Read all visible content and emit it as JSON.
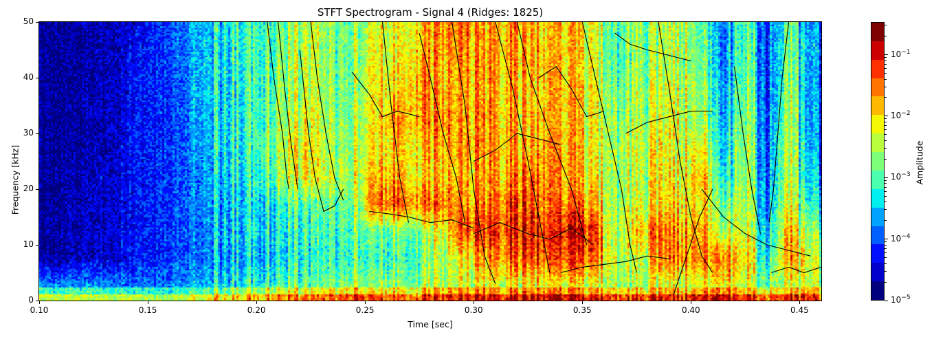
{
  "chart_data": {
    "type": "heatmap",
    "title": "STFT Spectrogram - Signal 4 (Ridges: 1825)",
    "xlabel": "Time [sec]",
    "ylabel": "Frequency [kHz]",
    "xlim": [
      0.1,
      0.46
    ],
    "ylim": [
      0,
      50
    ],
    "xticks": [
      "0.10",
      "0.15",
      "0.20",
      "0.25",
      "0.30",
      "0.35",
      "0.40",
      "0.45"
    ],
    "yticks": [
      "0",
      "10",
      "20",
      "30",
      "40",
      "50"
    ],
    "colorbar": {
      "label": "Amplitude",
      "scale": "log",
      "range": [
        1e-05,
        0.34
      ],
      "ticks": [
        {
          "base": "10",
          "exp": "−5"
        },
        {
          "base": "10",
          "exp": "−4"
        },
        {
          "base": "10",
          "exp": "−3"
        },
        {
          "base": "10",
          "exp": "−2"
        },
        {
          "base": "10",
          "exp": "−1"
        }
      ],
      "colormap": "jet",
      "levels": [
        "#00007f",
        "#0000cd",
        "#0010ff",
        "#0060ff",
        "#00a4ff",
        "#00f0f0",
        "#4affad",
        "#7dff7a",
        "#baff3d",
        "#f4f802",
        "#ffb900",
        "#ff7300",
        "#ff3000",
        "#cd0000",
        "#7f0000"
      ]
    },
    "ridge_color": "#000000",
    "grid_time_start": [
      0.1,
      0.11,
      0.12,
      0.13,
      0.14,
      0.15,
      0.16,
      0.17,
      0.18,
      0.19,
      0.2,
      0.21,
      0.22,
      0.23,
      0.24,
      0.25,
      0.26,
      0.27,
      0.28,
      0.29,
      0.3,
      0.31,
      0.32,
      0.33,
      0.34,
      0.35,
      0.36,
      0.37,
      0.38,
      0.39,
      0.4,
      0.41,
      0.42,
      0.43,
      0.44,
      0.45
    ],
    "grid_freq_bands_khz": [
      "0-5",
      "5-10",
      "10-15",
      "15-20",
      "20-25",
      "25-30",
      "30-35",
      "35-40",
      "40-45",
      "45-50"
    ],
    "log10_amplitude_grid": [
      [
        -3.7,
        -4.7,
        -4.8,
        -4.8,
        -4.8,
        -4.8,
        -4.8,
        -4.8,
        -4.8,
        -4.8
      ],
      [
        -3.7,
        -4.6,
        -4.7,
        -4.7,
        -4.7,
        -4.8,
        -4.8,
        -4.8,
        -4.8,
        -4.8
      ],
      [
        -3.7,
        -4.5,
        -4.6,
        -4.6,
        -4.6,
        -4.7,
        -4.7,
        -4.7,
        -4.7,
        -4.7
      ],
      [
        -3.7,
        -4.4,
        -4.4,
        -4.4,
        -4.4,
        -4.5,
        -4.5,
        -4.5,
        -4.5,
        -4.5
      ],
      [
        -3.8,
        -4.3,
        -4.3,
        -4.3,
        -4.3,
        -4.3,
        -4.3,
        -4.3,
        -4.3,
        -4.4
      ],
      [
        -3.8,
        -4.2,
        -4.2,
        -4.2,
        -4.2,
        -4.2,
        -4.2,
        -4.2,
        -4.2,
        -4.2
      ],
      [
        -3.7,
        -4.0,
        -4.0,
        -4.0,
        -4.0,
        -4.0,
        -4.0,
        -4.0,
        -3.9,
        -3.9
      ],
      [
        -3.5,
        -3.8,
        -3.8,
        -3.7,
        -3.7,
        -3.6,
        -3.6,
        -3.5,
        -3.5,
        -3.5
      ],
      [
        -3.3,
        -3.6,
        -3.5,
        -3.5,
        -3.4,
        -3.3,
        -3.3,
        -3.3,
        -3.3,
        -3.3
      ],
      [
        -3.2,
        -3.5,
        -3.4,
        -3.4,
        -3.3,
        -3.2,
        -3.2,
        -3.2,
        -3.1,
        -3.1
      ],
      [
        -3.0,
        -3.4,
        -3.3,
        -3.2,
        -2.9,
        -2.7,
        -2.8,
        -2.8,
        -2.9,
        -2.9
      ],
      [
        -2.9,
        -3.3,
        -3.2,
        -3.0,
        -2.3,
        -2.3,
        -2.5,
        -2.6,
        -2.6,
        -2.7
      ],
      [
        -2.9,
        -3.3,
        -3.2,
        -3.0,
        -2.2,
        -2.2,
        -2.3,
        -2.5,
        -2.5,
        -2.5
      ],
      [
        -2.8,
        -3.2,
        -3.1,
        -2.9,
        -2.5,
        -2.6,
        -2.7,
        -2.8,
        -2.8,
        -2.8
      ],
      [
        -2.4,
        -2.9,
        -2.8,
        -2.6,
        -2.3,
        -2.4,
        -2.5,
        -2.6,
        -2.6,
        -2.6
      ],
      [
        -2.6,
        -3.0,
        -2.8,
        -1.4,
        -1.8,
        -2.0,
        -2.0,
        -2.0,
        -2.1,
        -2.2
      ],
      [
        -2.6,
        -2.9,
        -2.7,
        -1.2,
        -1.7,
        -1.8,
        -1.5,
        -1.9,
        -2.0,
        -2.1
      ],
      [
        -2.5,
        -2.8,
        -2.6,
        -1.4,
        -1.9,
        -1.8,
        -1.6,
        -1.5,
        -1.6,
        -1.8
      ],
      [
        -2.5,
        -2.6,
        -2.3,
        -1.5,
        -2.0,
        -1.8,
        -1.6,
        -1.9,
        -1.8,
        -1.7
      ],
      [
        -2.4,
        -2.2,
        -1.4,
        -1.7,
        -1.9,
        -1.7,
        -1.8,
        -1.8,
        -1.7,
        -1.6
      ],
      [
        -2.3,
        -1.8,
        -1.3,
        -1.6,
        -1.8,
        -1.7,
        -1.7,
        -1.8,
        -1.8,
        -1.8
      ],
      [
        -2.3,
        -1.5,
        -1.2,
        -1.4,
        -1.7,
        -1.7,
        -1.8,
        -1.8,
        -1.7,
        -1.7
      ],
      [
        -2.2,
        -1.3,
        -1.1,
        -1.3,
        -1.5,
        -1.8,
        -1.9,
        -1.9,
        -1.8,
        -1.8
      ],
      [
        -2.2,
        -1.4,
        -1.2,
        -1.5,
        -1.6,
        -1.7,
        -1.8,
        -1.8,
        -1.8,
        -1.9
      ],
      [
        -2.3,
        -1.4,
        -1.1,
        -1.6,
        -1.9,
        -1.9,
        -2.0,
        -2.0,
        -2.1,
        -2.0
      ],
      [
        -2.4,
        -1.5,
        -1.2,
        -1.8,
        -2.1,
        -2.2,
        -2.2,
        -2.2,
        -2.3,
        -2.3
      ],
      [
        -2.6,
        -2.4,
        -2.5,
        -2.6,
        -2.6,
        -2.6,
        -2.7,
        -2.8,
        -3.0,
        -3.0
      ],
      [
        -2.6,
        -2.5,
        -2.0,
        -2.4,
        -2.5,
        -2.4,
        -2.6,
        -2.6,
        -2.7,
        -2.7
      ],
      [
        -2.5,
        -1.8,
        -1.5,
        -2.1,
        -2.2,
        -2.2,
        -2.4,
        -2.4,
        -2.6,
        -2.6
      ],
      [
        -2.4,
        -1.6,
        -1.8,
        -2.0,
        -2.2,
        -2.3,
        -2.3,
        -2.4,
        -2.5,
        -2.5
      ],
      [
        -2.3,
        -1.6,
        -1.7,
        -2.0,
        -1.8,
        -2.2,
        -2.6,
        -2.6,
        -2.8,
        -2.9
      ],
      [
        -2.2,
        -1.6,
        -2.6,
        -2.9,
        -3.3,
        -3.5,
        -3.6,
        -3.7,
        -3.8,
        -3.8
      ],
      [
        -2.3,
        -1.8,
        -2.1,
        -2.3,
        -2.4,
        -2.4,
        -2.5,
        -2.6,
        -2.7,
        -2.8
      ],
      [
        -2.8,
        -3.2,
        -3.5,
        -3.7,
        -3.8,
        -3.9,
        -3.9,
        -4.0,
        -4.0,
        -4.0
      ],
      [
        -2.4,
        -1.6,
        -1.8,
        -2.2,
        -2.4,
        -2.4,
        -2.5,
        -2.6,
        -2.7,
        -2.8
      ],
      [
        -2.6,
        -2.4,
        -2.8,
        -3.3,
        -3.6,
        -3.7,
        -3.8,
        -3.8,
        -3.8,
        -3.8
      ]
    ],
    "ridges": [
      [
        [
          0.205,
          50
        ],
        [
          0.208,
          40
        ],
        [
          0.212,
          30
        ],
        [
          0.214,
          22
        ],
        [
          0.215,
          20
        ]
      ],
      [
        [
          0.21,
          50
        ],
        [
          0.213,
          38
        ],
        [
          0.216,
          28
        ],
        [
          0.219,
          20
        ]
      ],
      [
        [
          0.225,
          50
        ],
        [
          0.228,
          40
        ],
        [
          0.232,
          30
        ],
        [
          0.236,
          22
        ],
        [
          0.24,
          18
        ]
      ],
      [
        [
          0.22,
          45
        ],
        [
          0.224,
          30
        ],
        [
          0.227,
          22
        ],
        [
          0.231,
          16
        ],
        [
          0.236,
          17
        ],
        [
          0.24,
          20
        ]
      ],
      [
        [
          0.252,
          16
        ],
        [
          0.262,
          15.5
        ],
        [
          0.27,
          15
        ],
        [
          0.28,
          14
        ],
        [
          0.29,
          14.5
        ],
        [
          0.3,
          13
        ]
      ],
      [
        [
          0.244,
          41
        ],
        [
          0.252,
          37
        ],
        [
          0.258,
          33
        ],
        [
          0.265,
          34
        ],
        [
          0.275,
          33
        ]
      ],
      [
        [
          0.258,
          50
        ],
        [
          0.262,
          35
        ],
        [
          0.266,
          22
        ],
        [
          0.27,
          14
        ]
      ],
      [
        [
          0.29,
          50
        ],
        [
          0.296,
          35
        ],
        [
          0.3,
          20
        ],
        [
          0.305,
          8
        ],
        [
          0.31,
          3
        ]
      ],
      [
        [
          0.3,
          12
        ],
        [
          0.312,
          14
        ],
        [
          0.325,
          12
        ],
        [
          0.335,
          11
        ],
        [
          0.345,
          13
        ],
        [
          0.355,
          10
        ]
      ],
      [
        [
          0.31,
          50
        ],
        [
          0.318,
          38
        ],
        [
          0.325,
          25
        ],
        [
          0.33,
          15
        ],
        [
          0.335,
          5
        ]
      ],
      [
        [
          0.32,
          50
        ],
        [
          0.326,
          40
        ],
        [
          0.335,
          30
        ],
        [
          0.345,
          20
        ],
        [
          0.352,
          10
        ]
      ],
      [
        [
          0.34,
          5
        ],
        [
          0.35,
          6
        ],
        [
          0.36,
          6.5
        ],
        [
          0.37,
          7
        ],
        [
          0.38,
          8
        ],
        [
          0.39,
          7.5
        ]
      ],
      [
        [
          0.35,
          50
        ],
        [
          0.356,
          40
        ],
        [
          0.362,
          30
        ],
        [
          0.368,
          20
        ],
        [
          0.372,
          10
        ],
        [
          0.375,
          5
        ]
      ],
      [
        [
          0.365,
          48
        ],
        [
          0.372,
          46
        ],
        [
          0.38,
          45
        ],
        [
          0.39,
          44
        ],
        [
          0.4,
          43
        ]
      ],
      [
        [
          0.37,
          30
        ],
        [
          0.38,
          32
        ],
        [
          0.39,
          33
        ],
        [
          0.4,
          34
        ],
        [
          0.41,
          34
        ]
      ],
      [
        [
          0.385,
          50
        ],
        [
          0.39,
          38
        ],
        [
          0.395,
          25
        ],
        [
          0.4,
          15
        ],
        [
          0.405,
          8
        ],
        [
          0.41,
          5
        ]
      ],
      [
        [
          0.392,
          1
        ],
        [
          0.398,
          8
        ],
        [
          0.404,
          15
        ],
        [
          0.41,
          20
        ]
      ],
      [
        [
          0.405,
          20
        ],
        [
          0.415,
          15
        ],
        [
          0.425,
          12
        ],
        [
          0.435,
          10
        ],
        [
          0.445,
          9
        ],
        [
          0.455,
          8
        ]
      ],
      [
        [
          0.42,
          42
        ],
        [
          0.424,
          30
        ],
        [
          0.428,
          20
        ],
        [
          0.432,
          12
        ]
      ],
      [
        [
          0.445,
          50
        ],
        [
          0.442,
          40
        ],
        [
          0.44,
          30
        ],
        [
          0.438,
          20
        ],
        [
          0.436,
          14
        ]
      ],
      [
        [
          0.437,
          5
        ],
        [
          0.445,
          6
        ],
        [
          0.452,
          5
        ],
        [
          0.46,
          6
        ]
      ],
      [
        [
          0.275,
          48
        ],
        [
          0.28,
          40
        ],
        [
          0.286,
          30
        ],
        [
          0.292,
          22
        ],
        [
          0.296,
          14
        ]
      ],
      [
        [
          0.33,
          40
        ],
        [
          0.338,
          42
        ],
        [
          0.345,
          38
        ],
        [
          0.352,
          33
        ],
        [
          0.36,
          34
        ]
      ],
      [
        [
          0.3,
          25
        ],
        [
          0.31,
          27
        ],
        [
          0.32,
          30
        ],
        [
          0.33,
          29
        ],
        [
          0.34,
          28
        ]
      ]
    ]
  }
}
